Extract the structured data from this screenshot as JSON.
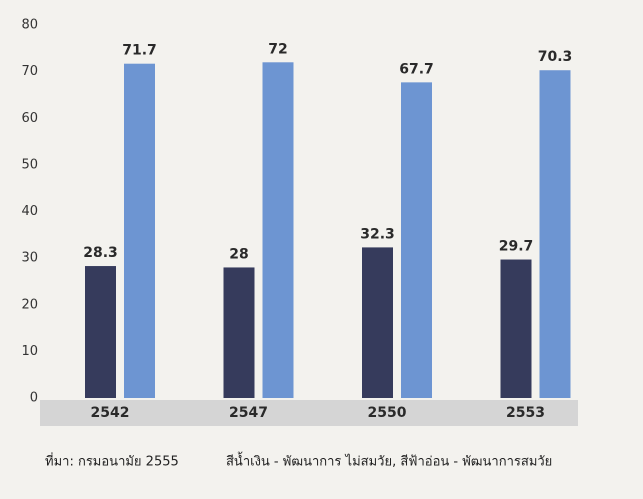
{
  "chart_data": {
    "type": "bar",
    "categories": [
      "2542",
      "2547",
      "2550",
      "2553"
    ],
    "series": [
      {
        "color": "#363b5c",
        "values": [
          28.3,
          28,
          32.3,
          29.7
        ]
      },
      {
        "color": "#6d95d2",
        "values": [
          71.7,
          72,
          67.7,
          70.3
        ]
      }
    ],
    "ylim": [
      0,
      80
    ],
    "yticks": [
      0,
      10,
      20,
      30,
      40,
      50,
      60,
      70,
      80
    ],
    "grid": false,
    "source": "ที่มา: กรมอนามัย 2555",
    "note": "สีน้ำเงิน - พัฒนาการ ไม่สมวัย, สีฟ้าอ่อน - พัฒนาการสมวัย"
  }
}
